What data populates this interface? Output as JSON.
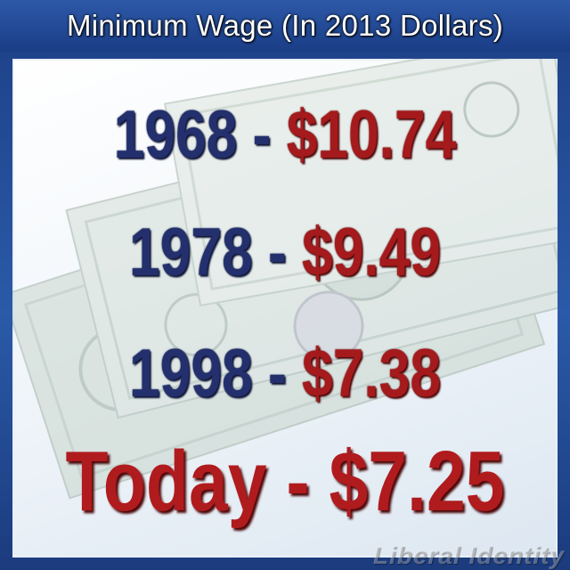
{
  "title": "Minimum Wage (In 2013 Dollars)",
  "rows": [
    {
      "year": "1968",
      "separator": " - ",
      "amount": "$10.74"
    },
    {
      "year": "1978",
      "separator": " - ",
      "amount": "$9.49"
    },
    {
      "year": "1998",
      "separator": " - ",
      "amount": "$7.38"
    }
  ],
  "today": {
    "label": "Today",
    "separator": " - ",
    "amount": "$7.25"
  },
  "watermark": "Liberal Identity",
  "colors": {
    "year": "#23306d",
    "amount": "#a51a1c",
    "frame": "#1d3f86"
  }
}
